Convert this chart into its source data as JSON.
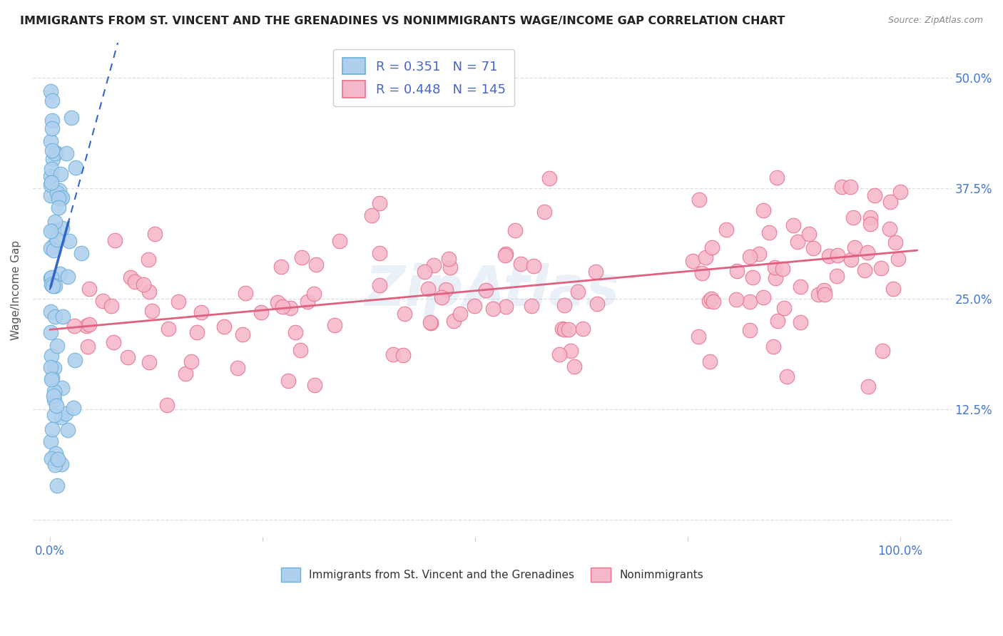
{
  "title": "IMMIGRANTS FROM ST. VINCENT AND THE GRENADINES VS NONIMMIGRANTS WAGE/INCOME GAP CORRELATION CHART",
  "source": "Source: ZipAtlas.com",
  "ylabel": "Wage/Income Gap",
  "legend_label_blue": "Immigrants from St. Vincent and the Grenadines",
  "legend_label_pink": "Nonimmigrants",
  "R_blue": 0.351,
  "N_blue": 71,
  "R_pink": 0.448,
  "N_pink": 145,
  "blue_color": "#aed0ee",
  "blue_edge": "#6aafd6",
  "pink_color": "#f5b8cb",
  "pink_edge": "#e8708a",
  "trend_blue": "#3366cc",
  "trend_pink": "#e06080",
  "background": "#ffffff",
  "watermark": "ZipAtlas",
  "ytick_vals": [
    0.0,
    0.125,
    0.25,
    0.375,
    0.5
  ],
  "ytick_labels": [
    "",
    "12.5%",
    "25.0%",
    "37.5%",
    "50.0%"
  ],
  "ymin": -0.02,
  "ymax": 0.54,
  "xmin": -0.02,
  "xmax": 1.06,
  "pink_intercept": 0.215,
  "pink_slope": 0.088,
  "blue_intercept": 0.26,
  "blue_slope": 3.5,
  "dot_size": 220
}
